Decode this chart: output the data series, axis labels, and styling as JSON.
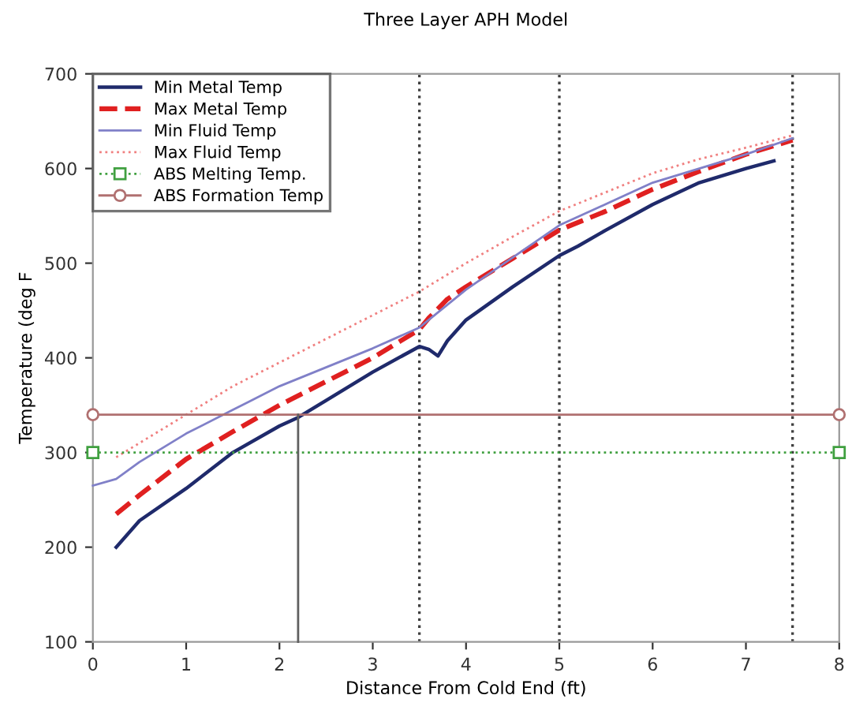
{
  "chart_data": {
    "type": "line",
    "title": "Three Layer APH Model",
    "xlabel": "Distance From Cold End (ft)",
    "ylabel": "Temperature (deg F",
    "xlim": [
      0,
      8
    ],
    "xticks": [
      0,
      1,
      2,
      3,
      4,
      5,
      6,
      7,
      8
    ],
    "ylim": [
      100,
      700
    ],
    "yticks": [
      100,
      200,
      300,
      400,
      500,
      600,
      700
    ],
    "legend": "top left",
    "grid": false,
    "series": [
      {
        "name": "Min Metal Temp",
        "color": "#1f2a6b",
        "line_style": "solid",
        "marker": "none",
        "x": [
          0.25,
          0.5,
          1,
          1.5,
          2,
          2.2,
          2.5,
          3,
          3.5,
          3.6,
          3.7,
          3.8,
          4,
          4.5,
          5,
          5.2,
          5.5,
          6,
          6.5,
          7,
          7.3
        ],
        "values": [
          200,
          228,
          262,
          300,
          328,
          337,
          355,
          385,
          412,
          409,
          402,
          418,
          440,
          475,
          508,
          518,
          535,
          562,
          585,
          600,
          608
        ]
      },
      {
        "name": "Max Metal Temp",
        "color": "#e02020",
        "line_style": "dashed",
        "marker": "none",
        "x": [
          0.25,
          0.5,
          1,
          1.5,
          2,
          2.5,
          3,
          3.5,
          3.6,
          3.8,
          4,
          4.5,
          5,
          5.5,
          6,
          6.5,
          7,
          7.5
        ],
        "values": [
          235,
          255,
          293,
          322,
          350,
          375,
          400,
          430,
          442,
          462,
          475,
          505,
          535,
          555,
          578,
          597,
          615,
          630
        ]
      },
      {
        "name": "Min Fluid Temp",
        "color": "#8080c8",
        "line_style": "solid",
        "marker": "none",
        "x": [
          0,
          0.25,
          0.5,
          1,
          1.5,
          2,
          2.5,
          3,
          3.5,
          4,
          5,
          6,
          7,
          7.5
        ],
        "values": [
          265,
          272,
          290,
          320,
          345,
          370,
          390,
          410,
          432,
          472,
          540,
          585,
          615,
          632
        ]
      },
      {
        "name": "Max Fluid Temp",
        "color": "#f08080",
        "line_style": "dotted",
        "marker": "none",
        "x": [
          0.25,
          0.5,
          1,
          1.5,
          2,
          2.5,
          3,
          3.5,
          4,
          4.5,
          5,
          5.5,
          6,
          6.5,
          7,
          7.5
        ],
        "values": [
          295,
          310,
          340,
          370,
          395,
          420,
          445,
          470,
          500,
          528,
          555,
          575,
          595,
          610,
          622,
          635
        ]
      },
      {
        "name": "ABS Melting Temp.",
        "color": "#40a040",
        "line_style": "dotted",
        "marker": "square",
        "x": [
          0,
          8
        ],
        "values": [
          300,
          300
        ]
      },
      {
        "name": "ABS Formation Temp",
        "color": "#b07070",
        "line_style": "solid",
        "marker": "circle",
        "x": [
          0,
          8
        ],
        "values": [
          340,
          340
        ]
      },
      {
        "color": "#606060",
        "line_style": "solid",
        "marker": "none",
        "x": [
          2.2,
          2.2
        ],
        "values": [
          100,
          340
        ]
      }
    ],
    "ref_lines": [
      {
        "axis": "x",
        "value": 3.5,
        "color": "#404040",
        "line_style": "dotted"
      },
      {
        "axis": "x",
        "value": 5,
        "color": "#404040",
        "line_style": "dotted"
      },
      {
        "axis": "x",
        "value": 7.5,
        "color": "#404040",
        "line_style": "dotted"
      }
    ]
  }
}
